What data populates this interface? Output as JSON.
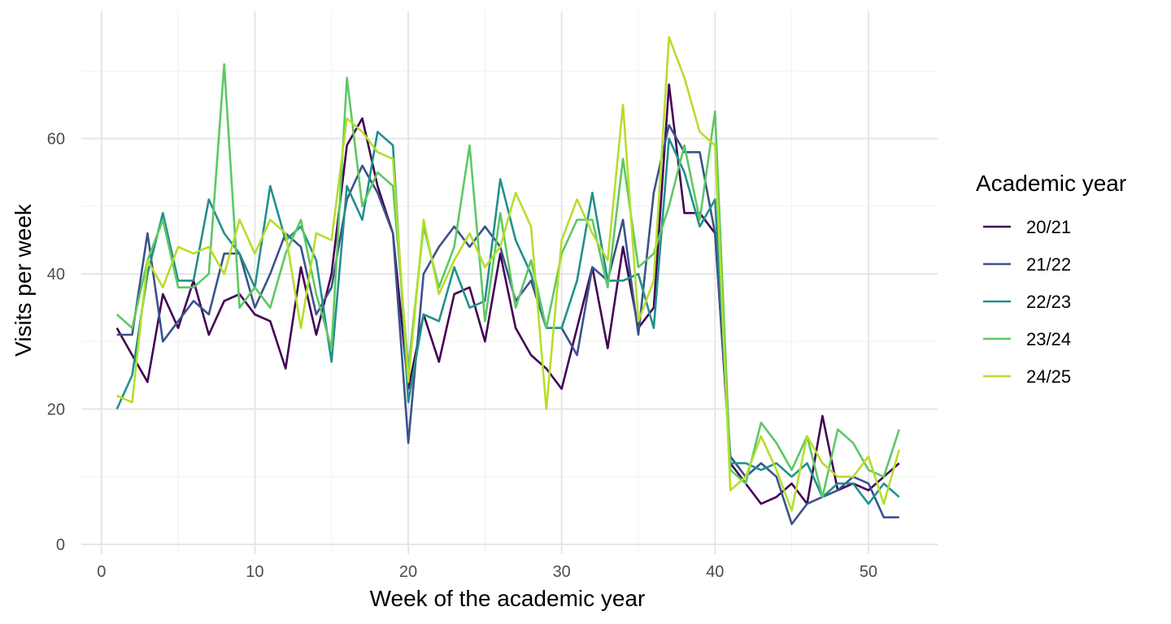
{
  "chart_data": {
    "type": "line",
    "title": "",
    "xlabel": "Week of the academic year",
    "ylabel": "Visits per week",
    "xlim": [
      0,
      52
    ],
    "ylim": [
      0,
      75
    ],
    "xticks": [
      0,
      10,
      20,
      30,
      40,
      50
    ],
    "yticks": [
      0,
      20,
      40,
      60
    ],
    "grid": true,
    "legend": {
      "title": "Academic year",
      "position": "right"
    },
    "x": [
      1,
      2,
      3,
      4,
      5,
      6,
      7,
      8,
      9,
      10,
      11,
      12,
      13,
      14,
      15,
      16,
      17,
      18,
      19,
      20,
      21,
      22,
      23,
      24,
      25,
      26,
      27,
      28,
      29,
      30,
      31,
      32,
      33,
      34,
      35,
      36,
      37,
      38,
      39,
      40,
      41,
      42,
      43,
      44,
      45,
      46,
      47,
      48,
      49,
      50,
      51,
      52
    ],
    "series": [
      {
        "name": "20/21",
        "color": "#440154",
        "values": [
          32,
          28,
          24,
          37,
          32,
          39,
          31,
          36,
          37,
          34,
          33,
          26,
          41,
          31,
          40,
          59,
          63,
          53,
          46,
          23,
          34,
          27,
          37,
          38,
          30,
          43,
          32,
          28,
          26,
          23,
          32,
          41,
          29,
          44,
          32,
          35,
          68,
          49,
          49,
          46,
          12,
          9,
          6,
          7,
          9,
          6,
          19,
          8,
          9,
          8,
          10,
          12
        ]
      },
      {
        "name": "21/22",
        "color": "#3b528b",
        "values": [
          31,
          31,
          46,
          30,
          33,
          36,
          34,
          43,
          43,
          35,
          40,
          46,
          44,
          34,
          38,
          51,
          56,
          52,
          46,
          15,
          40,
          44,
          47,
          44,
          47,
          44,
          36,
          39,
          32,
          32,
          28,
          41,
          39,
          48,
          31,
          52,
          62,
          58,
          58,
          46,
          13,
          10,
          12,
          10,
          3,
          6,
          7,
          8,
          10,
          9,
          4,
          4
        ]
      },
      {
        "name": "22/23",
        "color": "#21908c",
        "values": [
          20,
          25,
          40,
          49,
          39,
          39,
          51,
          46,
          43,
          38,
          53,
          45,
          47,
          42,
          27,
          53,
          48,
          61,
          59,
          21,
          34,
          33,
          41,
          35,
          36,
          54,
          45,
          40,
          32,
          32,
          39,
          52,
          39,
          39,
          40,
          32,
          60,
          55,
          47,
          51,
          12,
          12,
          11,
          12,
          10,
          12,
          7,
          9,
          9,
          6,
          9,
          7
        ]
      },
      {
        "name": "23/24",
        "color": "#5dc863",
        "values": [
          34,
          32,
          42,
          48,
          38,
          38,
          40,
          71,
          35,
          38,
          35,
          43,
          48,
          37,
          29,
          69,
          50,
          55,
          53,
          26,
          47,
          38,
          44,
          59,
          33,
          49,
          35,
          42,
          32,
          43,
          48,
          48,
          38,
          57,
          41,
          43,
          50,
          59,
          48,
          64,
          11,
          9,
          18,
          15,
          11,
          16,
          7,
          17,
          15,
          11,
          10,
          17
        ]
      },
      {
        "name": "24/25",
        "color": "#b5de2b",
        "values": [
          22,
          21,
          42,
          38,
          44,
          43,
          44,
          40,
          48,
          43,
          48,
          46,
          32,
          46,
          45,
          63,
          61,
          58,
          57,
          24,
          48,
          37,
          42,
          46,
          41,
          44,
          52,
          47,
          20,
          45,
          51,
          46,
          42,
          65,
          33,
          39,
          75,
          69,
          61,
          59,
          8,
          10,
          16,
          11,
          5,
          16,
          12,
          10,
          10,
          13,
          6,
          14
        ]
      }
    ]
  }
}
